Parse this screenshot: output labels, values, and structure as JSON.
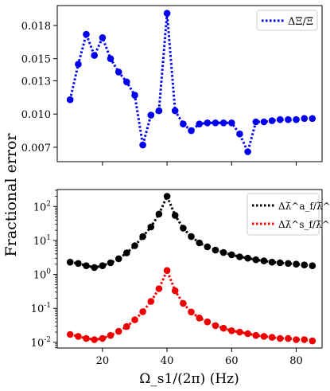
{
  "chart_data": [
    {
      "type": "line",
      "panel": "top",
      "ylabel": "Fractional error",
      "xlabel": "",
      "xlim": [
        6,
        88
      ],
      "ylim": [
        0.0057,
        0.0198
      ],
      "yticks": [
        0.007,
        0.01,
        0.013,
        0.015,
        0.018
      ],
      "ytick_labels": [
        "0.007",
        "0.010",
        "0.013",
        "0.015",
        "0.018"
      ],
      "xticks": [
        20,
        40,
        60,
        80
      ],
      "xtick_labels": [
        "",
        "",
        "",
        ""
      ],
      "grid": false,
      "legend_position": "top-right",
      "series": [
        {
          "name": "ΔΞ/Ξ",
          "color": "#0000ee",
          "style": "dotted-with-markers",
          "x": [
            10,
            12.5,
            15,
            17.5,
            20,
            22.5,
            25,
            27.5,
            30,
            32.5,
            35,
            37.5,
            40,
            42.5,
            45,
            47.5,
            50,
            52.5,
            55,
            57.5,
            60,
            62.5,
            65,
            67.5,
            70,
            72.5,
            75,
            77.5,
            80,
            82.5,
            85
          ],
          "y": [
            0.0113,
            0.0145,
            0.0172,
            0.0153,
            0.0169,
            0.015,
            0.0138,
            0.0129,
            0.0117,
            0.0072,
            0.0099,
            0.0103,
            0.0191,
            0.0103,
            0.0091,
            0.0085,
            0.0091,
            0.0092,
            0.0092,
            0.0092,
            0.0092,
            0.0082,
            0.0066,
            0.0093,
            0.0093,
            0.0094,
            0.0095,
            0.0095,
            0.0095,
            0.0096,
            0.0096
          ]
        }
      ]
    },
    {
      "type": "line",
      "panel": "bottom",
      "xlabel": "Ω_s1/(2π) (Hz)",
      "ylabel": "Fractional error",
      "xlim": [
        6,
        88
      ],
      "ylim": [
        0.0068,
        316
      ],
      "yscale": "log",
      "yticks": [
        0.01,
        0.1,
        1,
        10,
        100
      ],
      "ytick_labels": [
        "10^-2",
        "10^-1",
        "10^0",
        "10^1",
        "10^2"
      ],
      "xticks": [
        20,
        40,
        60,
        80
      ],
      "xtick_labels": [
        "20",
        "40",
        "60",
        "80"
      ],
      "grid": false,
      "legend_position": "top-right",
      "series": [
        {
          "name": "Δλ̄^a_f/λ̄^a_f",
          "color": "#000000",
          "style": "dotted-with-markers",
          "x": [
            10,
            12.5,
            15,
            17.5,
            20,
            22.5,
            25,
            27.5,
            30,
            32.5,
            35,
            37.5,
            40,
            42.5,
            45,
            47.5,
            50,
            52.5,
            55,
            57.5,
            60,
            62.5,
            65,
            67.5,
            70,
            72.5,
            75,
            77.5,
            80,
            82.5,
            85
          ],
          "y": [
            2.3,
            2.1,
            1.8,
            1.6,
            1.8,
            2.2,
            2.9,
            4.3,
            7.0,
            13,
            25,
            60,
            200,
            55,
            23,
            13,
            8.5,
            6.5,
            5.2,
            4.4,
            3.8,
            3.3,
            3.0,
            2.7,
            2.5,
            2.3,
            2.2,
            2.1,
            2.0,
            1.9,
            1.8
          ]
        },
        {
          "name": "Δλ̄^s_f/λ̄^s_f",
          "color": "#ee0000",
          "style": "dotted-with-markers",
          "x": [
            10,
            12.5,
            15,
            17.5,
            20,
            22.5,
            25,
            27.5,
            30,
            32.5,
            35,
            37.5,
            40,
            42.5,
            45,
            47.5,
            50,
            52.5,
            55,
            57.5,
            60,
            62.5,
            65,
            67.5,
            70,
            72.5,
            75,
            77.5,
            80,
            82.5,
            85
          ],
          "y": [
            0.017,
            0.015,
            0.013,
            0.012,
            0.013,
            0.016,
            0.021,
            0.029,
            0.046,
            0.08,
            0.16,
            0.38,
            1.3,
            0.33,
            0.14,
            0.078,
            0.052,
            0.04,
            0.031,
            0.026,
            0.022,
            0.02,
            0.018,
            0.016,
            0.015,
            0.014,
            0.013,
            0.013,
            0.012,
            0.012,
            0.011
          ]
        }
      ]
    }
  ]
}
